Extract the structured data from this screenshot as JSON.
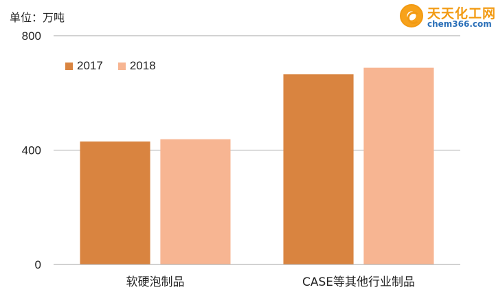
{
  "watermark": {
    "title": "天天化工网",
    "subtitle": "chem366.com"
  },
  "chart_data": {
    "type": "bar",
    "unit_label": "单位：万吨",
    "categories": [
      "软硬泡制品",
      "CASE等其他行业制品"
    ],
    "series": [
      {
        "name": "2017",
        "color": "#D98440",
        "values": [
          430,
          665
        ]
      },
      {
        "name": "2018",
        "color": "#F7B592",
        "values": [
          438,
          688
        ]
      }
    ],
    "yticks": [
      "0",
      "400",
      "800"
    ],
    "ylim": [
      0,
      800
    ],
    "grid": true,
    "legend": "top-left",
    "colors": {
      "axis": "#a6a6a6",
      "grid": "#a6a6a6",
      "text": "#222222"
    }
  }
}
